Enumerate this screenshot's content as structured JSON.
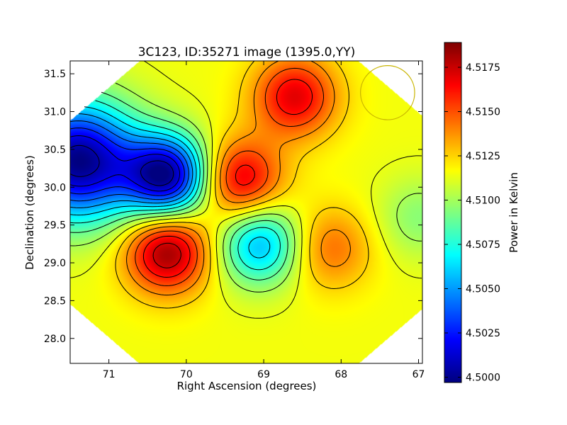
{
  "chart_data": {
    "type": "heatmap",
    "title": "3C123, ID:35271 image (1395.0,YY)",
    "xlabel": "Right Ascension (degrees)",
    "ylabel": "Declination (degrees)",
    "xlim": [
      71.5,
      66.95
    ],
    "ylim": [
      27.67,
      31.67
    ],
    "x_ticks": [
      71,
      70,
      69,
      68,
      67
    ],
    "x_tick_labels": [
      "71",
      "70",
      "69",
      "68",
      "67"
    ],
    "y_ticks": [
      28.0,
      28.5,
      29.0,
      29.5,
      30.0,
      30.5,
      31.0,
      31.5
    ],
    "y_tick_labels": [
      "28.0",
      "28.5",
      "29.0",
      "29.5",
      "30.0",
      "30.5",
      "31.0",
      "31.5"
    ],
    "colorbar": {
      "label": "Power in Kelvin",
      "colormap": "jet",
      "range": [
        4.4997,
        4.5189
      ],
      "ticks": [
        4.5,
        4.5025,
        4.505,
        4.5075,
        4.51,
        4.5125,
        4.515,
        4.5175
      ],
      "tick_labels": [
        "4.5000",
        "4.5025",
        "4.5050",
        "4.5075",
        "4.5100",
        "4.5125",
        "4.5150",
        "4.5175"
      ]
    },
    "features": [
      {
        "kind": "minimum",
        "ra": 71.4,
        "dec": 30.35,
        "value": 4.4998
      },
      {
        "kind": "minimum",
        "ra": 70.25,
        "dec": 30.15,
        "value": 4.5005
      },
      {
        "kind": "maximum",
        "ra": 70.25,
        "dec": 29.15,
        "value": 4.5185
      },
      {
        "kind": "maximum",
        "ra": 69.3,
        "dec": 30.1,
        "value": 4.5172
      },
      {
        "kind": "maximum",
        "ra": 68.6,
        "dec": 31.2,
        "value": 4.517
      },
      {
        "kind": "maximum",
        "ra": 68.15,
        "dec": 29.2,
        "value": 4.5145
      },
      {
        "kind": "minimum",
        "ra": 69.05,
        "dec": 29.25,
        "value": 4.5055
      },
      {
        "kind": "minimum",
        "ra": 67.0,
        "dec": 29.6,
        "value": 4.5095
      }
    ],
    "baseline_value": 4.5115,
    "circle_marker": {
      "ra": 67.4,
      "dec": 31.25,
      "radius_deg": 0.35,
      "color": "#c8b400"
    },
    "grid": false,
    "legend": "none"
  },
  "colors": {
    "contour": "#000000",
    "circle": "#c8b400"
  }
}
